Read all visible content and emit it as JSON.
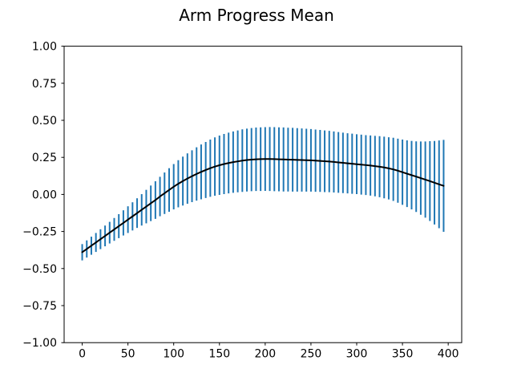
{
  "chart_data": {
    "type": "line",
    "title": "Arm Progress Mean",
    "xlabel": "",
    "ylabel": "",
    "xlim": [
      -19.75,
      414.75
    ],
    "ylim": [
      -1.0,
      1.0
    ],
    "grid": false,
    "legend": null,
    "line_color": "#000000",
    "errorbar_color": "#1f77b4",
    "axis_color": "#000000",
    "background_color": "#ffffff",
    "xticks": [
      0,
      50,
      100,
      150,
      200,
      250,
      300,
      350,
      400
    ],
    "xtick_labels": [
      "0",
      "50",
      "100",
      "150",
      "200",
      "250",
      "300",
      "350",
      "400"
    ],
    "yticks": [
      -1.0,
      -0.75,
      -0.5,
      -0.25,
      0.0,
      0.25,
      0.5,
      0.75,
      1.0
    ],
    "ytick_labels": [
      "−1.00",
      "−0.75",
      "−0.50",
      "−0.25",
      "0.00",
      "0.25",
      "0.50",
      "0.75",
      "1.00"
    ],
    "x": [
      0,
      5,
      10,
      15,
      20,
      25,
      30,
      35,
      40,
      45,
      50,
      55,
      60,
      65,
      70,
      75,
      80,
      85,
      90,
      95,
      100,
      105,
      110,
      115,
      120,
      125,
      130,
      135,
      140,
      145,
      150,
      155,
      160,
      165,
      170,
      175,
      180,
      185,
      190,
      195,
      200,
      205,
      210,
      215,
      220,
      225,
      230,
      235,
      240,
      245,
      250,
      255,
      260,
      265,
      270,
      275,
      280,
      285,
      290,
      295,
      300,
      305,
      310,
      315,
      320,
      325,
      330,
      335,
      340,
      345,
      350,
      355,
      360,
      365,
      370,
      375,
      380,
      385,
      390,
      395
    ],
    "series": [
      {
        "name": "mean",
        "values": [
          -0.39,
          -0.368,
          -0.346,
          -0.324,
          -0.302,
          -0.28,
          -0.258,
          -0.236,
          -0.214,
          -0.192,
          -0.17,
          -0.148,
          -0.126,
          -0.104,
          -0.082,
          -0.06,
          -0.038,
          -0.014,
          0.008,
          0.03,
          0.052,
          0.072,
          0.09,
          0.107,
          0.123,
          0.138,
          0.152,
          0.165,
          0.177,
          0.188,
          0.197,
          0.205,
          0.212,
          0.218,
          0.223,
          0.228,
          0.232,
          0.235,
          0.237,
          0.238,
          0.239,
          0.239,
          0.238,
          0.237,
          0.236,
          0.235,
          0.234,
          0.233,
          0.232,
          0.231,
          0.23,
          0.228,
          0.226,
          0.224,
          0.222,
          0.219,
          0.216,
          0.213,
          0.21,
          0.207,
          0.204,
          0.201,
          0.198,
          0.195,
          0.191,
          0.187,
          0.182,
          0.176,
          0.169,
          0.16,
          0.15,
          0.14,
          0.13,
          0.12,
          0.11,
          0.1,
          0.09,
          0.079,
          0.068,
          0.058
        ]
      }
    ],
    "yerr": [
      0.055,
      0.058,
      0.061,
      0.064,
      0.067,
      0.07,
      0.073,
      0.077,
      0.081,
      0.085,
      0.09,
      0.095,
      0.1,
      0.106,
      0.113,
      0.12,
      0.127,
      0.133,
      0.14,
      0.147,
      0.153,
      0.159,
      0.165,
      0.17,
      0.175,
      0.18,
      0.185,
      0.189,
      0.193,
      0.197,
      0.2,
      0.203,
      0.205,
      0.207,
      0.209,
      0.211,
      0.212,
      0.213,
      0.214,
      0.215,
      0.215,
      0.216,
      0.216,
      0.216,
      0.216,
      0.215,
      0.215,
      0.214,
      0.213,
      0.212,
      0.211,
      0.21,
      0.209,
      0.208,
      0.207,
      0.206,
      0.205,
      0.204,
      0.203,
      0.203,
      0.202,
      0.202,
      0.202,
      0.203,
      0.204,
      0.206,
      0.208,
      0.21,
      0.213,
      0.216,
      0.22,
      0.225,
      0.231,
      0.238,
      0.247,
      0.257,
      0.269,
      0.282,
      0.296,
      0.31
    ]
  }
}
